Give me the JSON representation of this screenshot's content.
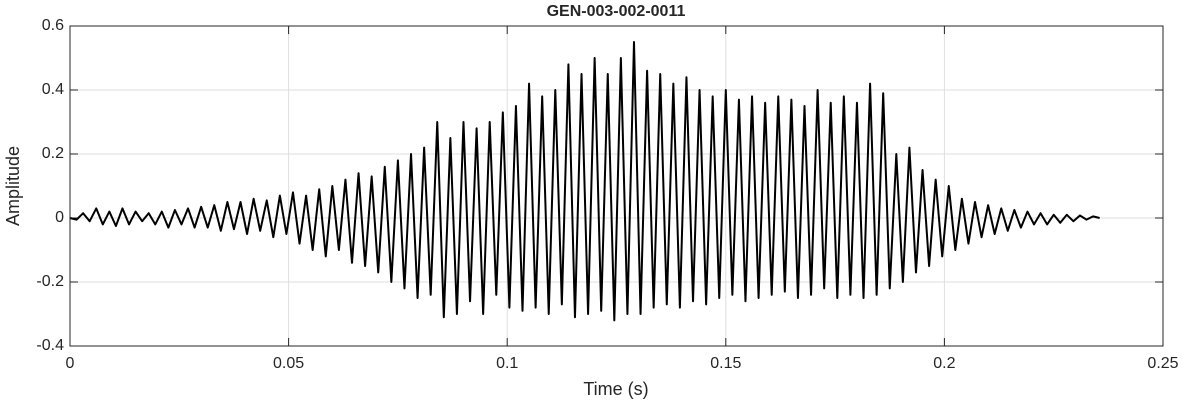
{
  "chart_data": {
    "type": "line",
    "title": "GEN-003-002-0011",
    "xlabel": "Time (s)",
    "ylabel": "Amplitude",
    "x": [
      0,
      0.0015,
      0.003,
      0.0045,
      0.006,
      0.0075,
      0.009,
      0.0105,
      0.012,
      0.0135,
      0.015,
      0.0165,
      0.018,
      0.0195,
      0.021,
      0.0225,
      0.024,
      0.0255,
      0.027,
      0.0285,
      0.03,
      0.0315,
      0.033,
      0.0345,
      0.036,
      0.0375,
      0.039,
      0.0405,
      0.042,
      0.0435,
      0.045,
      0.0465,
      0.048,
      0.0495,
      0.051,
      0.0525,
      0.054,
      0.0555,
      0.057,
      0.0585,
      0.06,
      0.0615,
      0.063,
      0.0645,
      0.066,
      0.0675,
      0.069,
      0.0705,
      0.072,
      0.0735,
      0.075,
      0.0765,
      0.078,
      0.0795,
      0.081,
      0.0825,
      0.084,
      0.0855,
      0.087,
      0.0885,
      0.09,
      0.0915,
      0.093,
      0.0945,
      0.096,
      0.0975,
      0.099,
      0.1005,
      0.102,
      0.1035,
      0.105,
      0.1065,
      0.108,
      0.1095,
      0.111,
      0.1125,
      0.114,
      0.1155,
      0.117,
      0.1185,
      0.12,
      0.1215,
      0.123,
      0.1245,
      0.126,
      0.1275,
      0.129,
      0.1305,
      0.132,
      0.1335,
      0.135,
      0.1365,
      0.138,
      0.1395,
      0.141,
      0.1425,
      0.144,
      0.1455,
      0.147,
      0.1485,
      0.15,
      0.1515,
      0.153,
      0.1545,
      0.156,
      0.1575,
      0.159,
      0.1605,
      0.162,
      0.1635,
      0.165,
      0.1665,
      0.168,
      0.1695,
      0.171,
      0.1725,
      0.174,
      0.1755,
      0.177,
      0.1785,
      0.18,
      0.1815,
      0.183,
      0.1845,
      0.186,
      0.1875,
      0.189,
      0.1905,
      0.192,
      0.1935,
      0.195,
      0.1965,
      0.198,
      0.1995,
      0.201,
      0.2025,
      0.204,
      0.2055,
      0.207,
      0.2085,
      0.21,
      0.2115,
      0.213,
      0.2145,
      0.216,
      0.2175,
      0.219,
      0.2205,
      0.222,
      0.2235,
      0.225,
      0.2265,
      0.228,
      0.2295,
      0.231,
      0.2325,
      0.234,
      0.2355
    ],
    "values": [
      0,
      -0.005,
      0.015,
      -0.01,
      0.03,
      -0.02,
      0.02,
      -0.025,
      0.03,
      -0.02,
      0.02,
      -0.01,
      0.015,
      -0.02,
      0.02,
      -0.03,
      0.025,
      -0.02,
      0.03,
      -0.03,
      0.035,
      -0.03,
      0.04,
      -0.04,
      0.05,
      -0.035,
      0.05,
      -0.05,
      0.06,
      -0.04,
      0.055,
      -0.06,
      0.07,
      -0.05,
      0.08,
      -0.08,
      0.07,
      -0.1,
      0.09,
      -0.12,
      0.1,
      -0.1,
      0.12,
      -0.14,
      0.14,
      -0.15,
      0.13,
      -0.17,
      0.16,
      -0.2,
      0.18,
      -0.22,
      0.2,
      -0.25,
      0.22,
      -0.24,
      0.3,
      -0.31,
      0.25,
      -0.3,
      0.3,
      -0.26,
      0.28,
      -0.3,
      0.3,
      -0.24,
      0.33,
      -0.28,
      0.35,
      -0.29,
      0.42,
      -0.28,
      0.38,
      -0.3,
      0.4,
      -0.27,
      0.48,
      -0.31,
      0.45,
      -0.3,
      0.5,
      -0.29,
      0.45,
      -0.32,
      0.5,
      -0.3,
      0.55,
      -0.3,
      0.46,
      -0.28,
      0.45,
      -0.27,
      0.42,
      -0.28,
      0.44,
      -0.26,
      0.4,
      -0.27,
      0.38,
      -0.25,
      0.4,
      -0.24,
      0.37,
      -0.26,
      0.38,
      -0.25,
      0.36,
      -0.24,
      0.38,
      -0.23,
      0.37,
      -0.25,
      0.35,
      -0.24,
      0.4,
      -0.22,
      0.36,
      -0.25,
      0.38,
      -0.24,
      0.36,
      -0.25,
      0.42,
      -0.24,
      0.39,
      -0.22,
      0.2,
      -0.2,
      0.22,
      -0.17,
      0.15,
      -0.15,
      0.12,
      -0.12,
      0.1,
      -0.1,
      0.06,
      -0.08,
      0.05,
      -0.06,
      0.04,
      -0.05,
      0.03,
      -0.04,
      0.025,
      -0.03,
      0.02,
      -0.02,
      0.015,
      -0.02,
      0.01,
      -0.015,
      0.01,
      -0.01,
      0.008,
      -0.005,
      0.005,
      0
    ],
    "color": "#000000",
    "xlim": [
      0,
      0.25
    ],
    "xticks": [
      0,
      0.05,
      0.1,
      0.15,
      0.2,
      0.25
    ],
    "ylim": [
      -0.4,
      0.6
    ],
    "yticks": [
      -0.4,
      -0.2,
      0,
      0.2,
      0.4,
      0.6
    ],
    "grid": true
  }
}
